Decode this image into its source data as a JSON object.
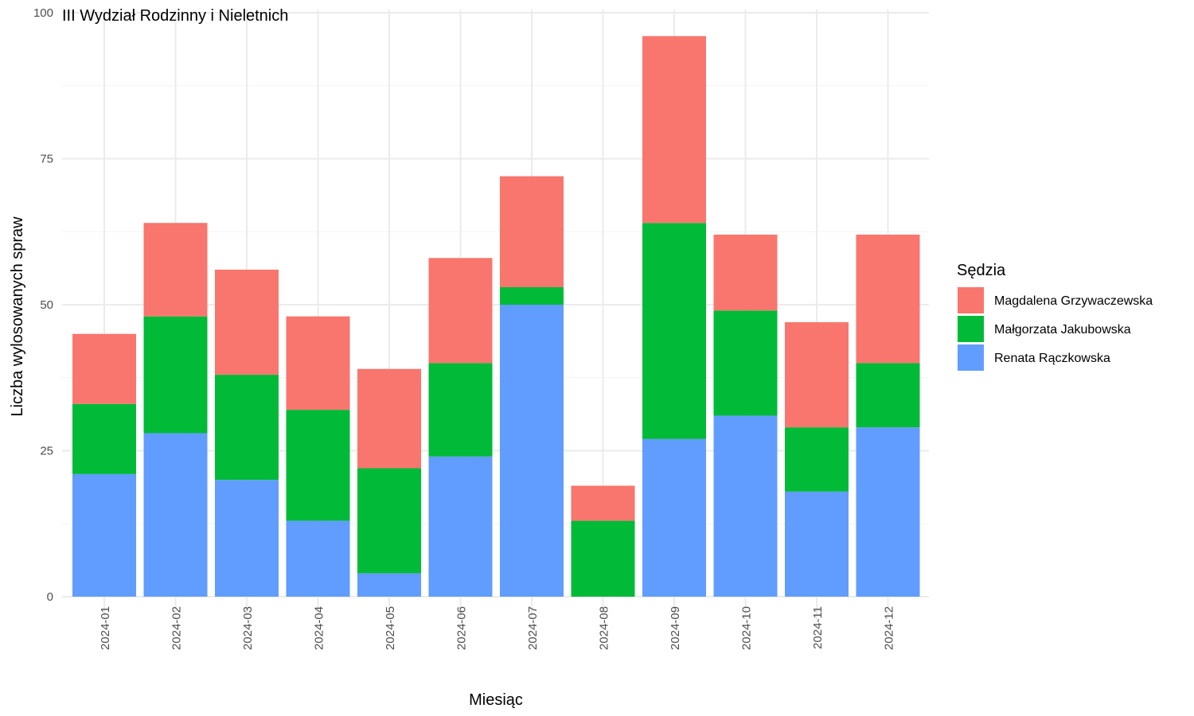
{
  "chart_data": {
    "type": "bar",
    "stacked": true,
    "title": "III Wydział Rodzinny i Nieletnich",
    "xlabel": "Miesiąc",
    "ylabel": "Liczba wylosowanych spraw",
    "ylim": [
      0,
      100
    ],
    "yticks": [
      0,
      25,
      50,
      75,
      100
    ],
    "grid": true,
    "legend_title": "Sędzia",
    "legend_position": "right",
    "categories": [
      "2024-01",
      "2024-02",
      "2024-03",
      "2024-04",
      "2024-05",
      "2024-06",
      "2024-07",
      "2024-08",
      "2024-09",
      "2024-10",
      "2024-11",
      "2024-12"
    ],
    "series": [
      {
        "name": "Renata Rączkowska",
        "color": "#619CFF",
        "values": [
          21,
          28,
          20,
          13,
          4,
          24,
          50,
          0,
          27,
          31,
          18,
          29
        ]
      },
      {
        "name": "Małgorzata Jakubowska",
        "color": "#00BA38",
        "values": [
          12,
          20,
          18,
          19,
          18,
          16,
          3,
          13,
          37,
          18,
          11,
          11
        ]
      },
      {
        "name": "Magdalena Grzywaczewska",
        "color": "#F8766D",
        "values": [
          12,
          16,
          18,
          16,
          17,
          18,
          19,
          6,
          32,
          13,
          18,
          22
        ]
      }
    ],
    "legend_order": [
      "Magdalena Grzywaczewska",
      "Małgorzata Jakubowska",
      "Renata Rączkowska"
    ]
  }
}
